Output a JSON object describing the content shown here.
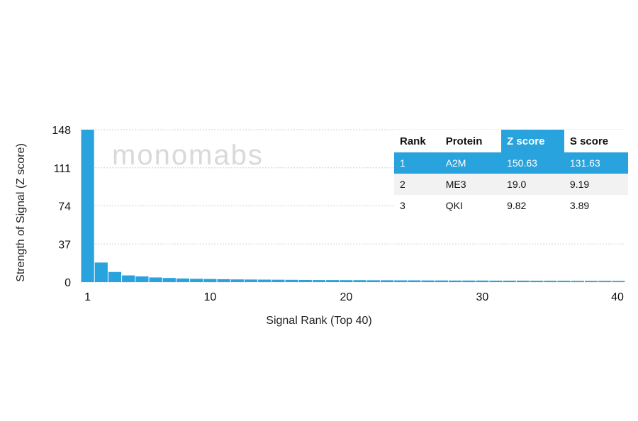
{
  "chart_data": {
    "type": "bar",
    "x": [
      1,
      2,
      3,
      4,
      5,
      6,
      7,
      8,
      9,
      10,
      11,
      12,
      13,
      14,
      15,
      16,
      17,
      18,
      19,
      20,
      21,
      22,
      23,
      24,
      25,
      26,
      27,
      28,
      29,
      30,
      31,
      32,
      33,
      34,
      35,
      36,
      37,
      38,
      39,
      40
    ],
    "values": [
      150.63,
      19.0,
      9.82,
      6.5,
      5.5,
      4.5,
      4.0,
      3.5,
      3.2,
      3.0,
      2.8,
      2.6,
      2.5,
      2.4,
      2.3,
      2.2,
      2.1,
      2.0,
      2.0,
      1.9,
      1.9,
      1.8,
      1.8,
      1.7,
      1.7,
      1.6,
      1.6,
      1.5,
      1.5,
      1.5,
      1.4,
      1.4,
      1.4,
      1.3,
      1.3,
      1.3,
      1.2,
      1.2,
      1.2,
      1.1
    ],
    "xlabel": "Signal Rank (Top 40)",
    "ylabel": "Strength of Signal (Z score)",
    "xticks": [
      1,
      10,
      20,
      30,
      40
    ],
    "yticks": [
      0,
      37,
      74,
      111,
      148
    ],
    "ylim": [
      0,
      148
    ],
    "grid": true,
    "bar_color": "#29a3dd",
    "watermark": "monomabs"
  },
  "table": {
    "headers": [
      "Rank",
      "Protein",
      "Z score",
      "S score"
    ],
    "highlight_header": "Z score",
    "highlight_color": "#29a3dd",
    "rows": [
      [
        "1",
        "A2M",
        "150.63",
        "131.63"
      ],
      [
        "2",
        "ME3",
        "19.0",
        "9.19"
      ],
      [
        "3",
        "QKI",
        "9.82",
        "3.89"
      ]
    ]
  }
}
